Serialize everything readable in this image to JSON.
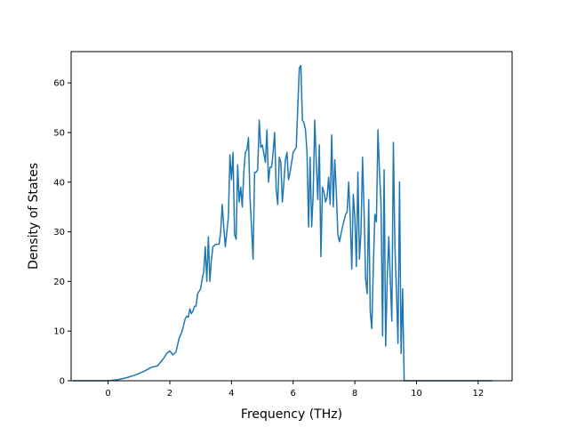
{
  "chart_data": {
    "type": "line",
    "title": "",
    "xlabel": "Frequency (THz)",
    "ylabel": "Density of States",
    "xlim": [
      -1.2,
      13.1
    ],
    "ylim": [
      0,
      66.3
    ],
    "xticks": [
      0,
      2,
      4,
      6,
      8,
      10,
      12
    ],
    "yticks": [
      0,
      10,
      20,
      30,
      40,
      50,
      60
    ],
    "grid": false,
    "series": [
      {
        "color": "#1f77b4",
        "points": [
          [
            -1.15,
            0
          ],
          [
            -0.5,
            0
          ],
          [
            0,
            0
          ],
          [
            0.3,
            0.2
          ],
          [
            0.6,
            0.6
          ],
          [
            0.9,
            1.2
          ],
          [
            1.2,
            2.0
          ],
          [
            1.4,
            2.7
          ],
          [
            1.6,
            3.0
          ],
          [
            1.8,
            4.5
          ],
          [
            1.9,
            5.5
          ],
          [
            2.0,
            6.0
          ],
          [
            2.1,
            5.2
          ],
          [
            2.2,
            5.8
          ],
          [
            2.3,
            8.5
          ],
          [
            2.4,
            10.0
          ],
          [
            2.5,
            12.5
          ],
          [
            2.55,
            13.0
          ],
          [
            2.6,
            12.8
          ],
          [
            2.65,
            14.5
          ],
          [
            2.7,
            13.5
          ],
          [
            2.75,
            14.0
          ],
          [
            2.8,
            15.0
          ],
          [
            2.85,
            15.0
          ],
          [
            2.9,
            17.5
          ],
          [
            3.0,
            18.5
          ],
          [
            3.05,
            20.5
          ],
          [
            3.1,
            22.0
          ],
          [
            3.15,
            27.0
          ],
          [
            3.2,
            20.0
          ],
          [
            3.25,
            29.0
          ],
          [
            3.3,
            20.0
          ],
          [
            3.35,
            24.5
          ],
          [
            3.4,
            27.0
          ],
          [
            3.5,
            27.5
          ],
          [
            3.6,
            27.5
          ],
          [
            3.65,
            30.0
          ],
          [
            3.7,
            35.5
          ],
          [
            3.75,
            31.0
          ],
          [
            3.8,
            27.0
          ],
          [
            3.85,
            30.0
          ],
          [
            3.9,
            33.0
          ],
          [
            3.95,
            45.5
          ],
          [
            4.0,
            40.5
          ],
          [
            4.05,
            46.0
          ],
          [
            4.1,
            29.5
          ],
          [
            4.15,
            28.5
          ],
          [
            4.2,
            43.5
          ],
          [
            4.25,
            36.0
          ],
          [
            4.3,
            39.0
          ],
          [
            4.35,
            35.0
          ],
          [
            4.4,
            42.0
          ],
          [
            4.45,
            46.0
          ],
          [
            4.5,
            46.5
          ],
          [
            4.55,
            49.0
          ],
          [
            4.6,
            37.0
          ],
          [
            4.65,
            31.0
          ],
          [
            4.7,
            24.5
          ],
          [
            4.75,
            42.0
          ],
          [
            4.8,
            42.0
          ],
          [
            4.85,
            42.5
          ],
          [
            4.9,
            52.5
          ],
          [
            4.95,
            47.0
          ],
          [
            5.0,
            47.5
          ],
          [
            5.1,
            44.0
          ],
          [
            5.15,
            50.5
          ],
          [
            5.2,
            40.0
          ],
          [
            5.25,
            43.0
          ],
          [
            5.3,
            43.0
          ],
          [
            5.35,
            46.0
          ],
          [
            5.4,
            50.0
          ],
          [
            5.45,
            38.5
          ],
          [
            5.5,
            35.5
          ],
          [
            5.55,
            45.0
          ],
          [
            5.6,
            44.0
          ],
          [
            5.65,
            36.0
          ],
          [
            5.7,
            40.0
          ],
          [
            5.75,
            44.5
          ],
          [
            5.8,
            46.0
          ],
          [
            5.85,
            40.5
          ],
          [
            5.9,
            42.0
          ],
          [
            6.0,
            46.0
          ],
          [
            6.1,
            47.0
          ],
          [
            6.15,
            55.0
          ],
          [
            6.2,
            63.0
          ],
          [
            6.25,
            63.5
          ],
          [
            6.3,
            52.5
          ],
          [
            6.35,
            52.0
          ],
          [
            6.4,
            50.5
          ],
          [
            6.45,
            46.0
          ],
          [
            6.5,
            31.0
          ],
          [
            6.55,
            45.0
          ],
          [
            6.6,
            31.0
          ],
          [
            6.65,
            37.5
          ],
          [
            6.7,
            52.5
          ],
          [
            6.75,
            44.0
          ],
          [
            6.8,
            36.5
          ],
          [
            6.85,
            47.5
          ],
          [
            6.9,
            25.0
          ],
          [
            6.95,
            39.0
          ],
          [
            7.0,
            38.0
          ],
          [
            7.05,
            36.0
          ],
          [
            7.1,
            37.0
          ],
          [
            7.15,
            41.0
          ],
          [
            7.2,
            35.5
          ],
          [
            7.25,
            49.5
          ],
          [
            7.3,
            35.0
          ],
          [
            7.35,
            44.5
          ],
          [
            7.4,
            38.0
          ],
          [
            7.45,
            29.5
          ],
          [
            7.5,
            28.0
          ],
          [
            7.6,
            31.0
          ],
          [
            7.7,
            33.5
          ],
          [
            7.75,
            34.0
          ],
          [
            7.8,
            40.0
          ],
          [
            7.85,
            33.0
          ],
          [
            7.9,
            22.5
          ],
          [
            7.95,
            37.5
          ],
          [
            8.0,
            33.0
          ],
          [
            8.05,
            23.0
          ],
          [
            8.1,
            42.0
          ],
          [
            8.15,
            24.5
          ],
          [
            8.2,
            30.0
          ],
          [
            8.25,
            45.0
          ],
          [
            8.3,
            34.0
          ],
          [
            8.35,
            20.5
          ],
          [
            8.4,
            17.5
          ],
          [
            8.45,
            36.5
          ],
          [
            8.5,
            14.0
          ],
          [
            8.55,
            10.5
          ],
          [
            8.6,
            23.0
          ],
          [
            8.65,
            33.5
          ],
          [
            8.7,
            32.0
          ],
          [
            8.75,
            50.5
          ],
          [
            8.8,
            42.0
          ],
          [
            8.85,
            35.5
          ],
          [
            8.9,
            9.0
          ],
          [
            8.95,
            42.5
          ],
          [
            9.0,
            7.0
          ],
          [
            9.05,
            20.5
          ],
          [
            9.1,
            29.0
          ],
          [
            9.15,
            20.5
          ],
          [
            9.2,
            12.0
          ],
          [
            9.25,
            48.0
          ],
          [
            9.3,
            27.0
          ],
          [
            9.35,
            18.0
          ],
          [
            9.4,
            7.5
          ],
          [
            9.45,
            40.0
          ],
          [
            9.5,
            5.5
          ],
          [
            9.55,
            18.5
          ],
          [
            9.6,
            0
          ],
          [
            9.7,
            0
          ],
          [
            10.0,
            0
          ],
          [
            12.45,
            0
          ]
        ]
      }
    ]
  }
}
